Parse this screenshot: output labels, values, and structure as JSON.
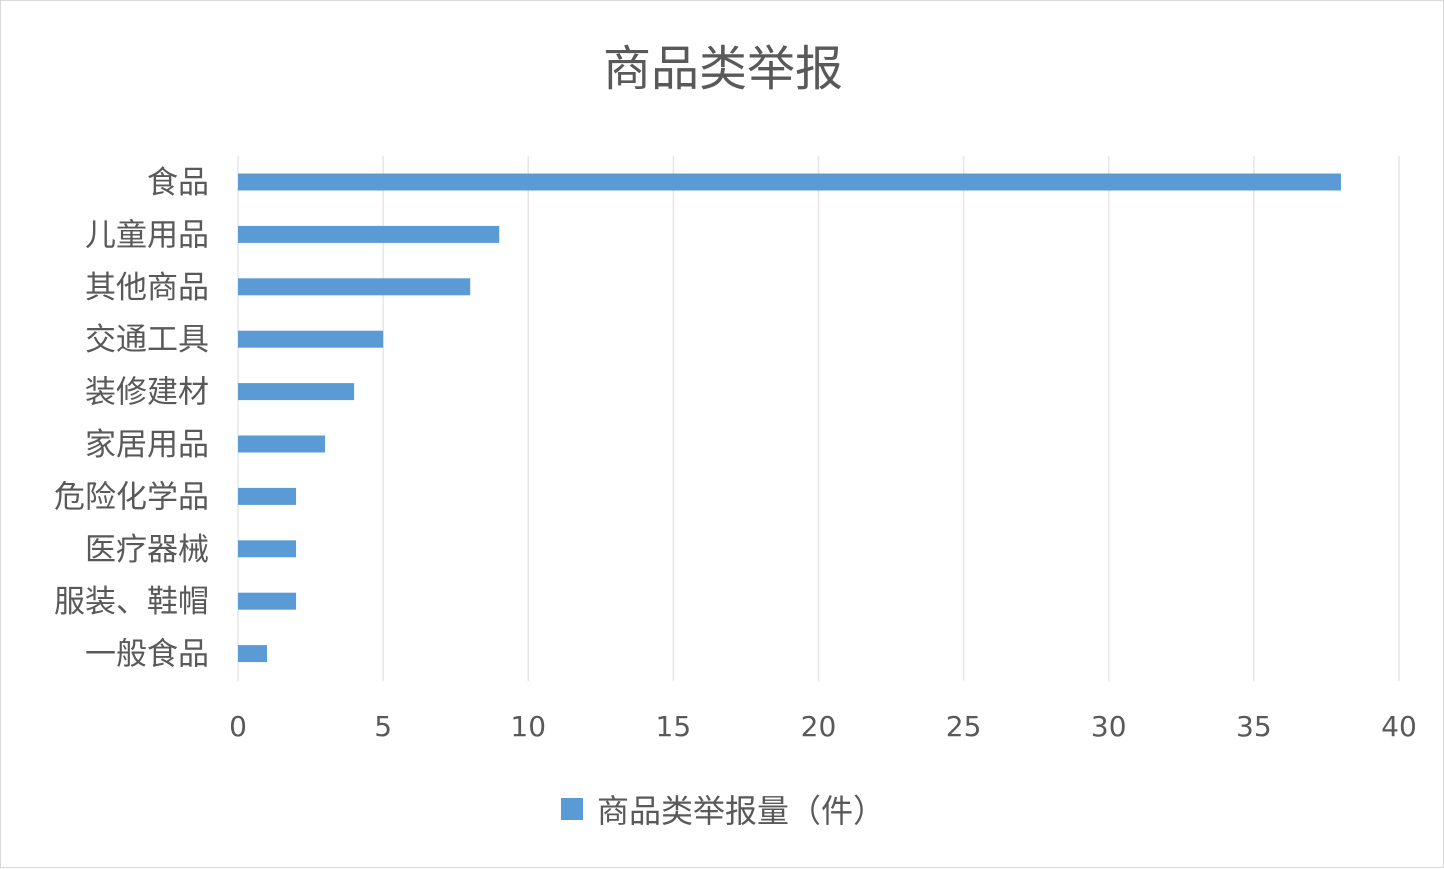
{
  "chart_data": {
    "type": "bar",
    "orientation": "horizontal",
    "title": "商品类举报",
    "categories": [
      "食品",
      "儿童用品",
      "其他商品",
      "交通工具",
      "装修建材",
      "家居用品",
      "危险化学品",
      "医疗器械",
      "服装、鞋帽",
      "一般食品"
    ],
    "series": [
      {
        "name": "商品类举报量（件）",
        "values": [
          38,
          9,
          8,
          5,
          4,
          3,
          2,
          2,
          2,
          1
        ]
      }
    ],
    "xlim": [
      0,
      40
    ],
    "xticks": [
      0,
      5,
      10,
      15,
      20,
      25,
      30,
      35,
      40
    ],
    "grid": true,
    "legend_position": "bottom",
    "bar_color": "#5b9bd5",
    "grid_color": "#e6e6e6"
  }
}
